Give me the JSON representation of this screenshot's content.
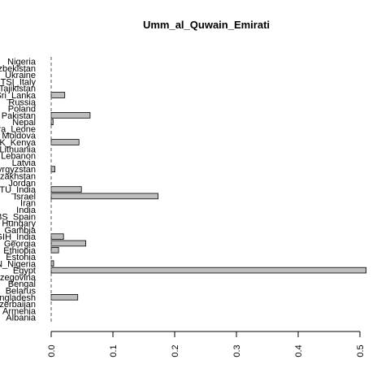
{
  "chart_data": {
    "type": "bar",
    "orientation": "horizontal",
    "title": "Umm_al_Quwain_Emirati",
    "xlabel": "",
    "ylabel": "",
    "xlim": [
      0,
      0.51
    ],
    "x_ticks": [
      "0.0",
      "0.1",
      "0.2",
      "0.3",
      "0.4",
      "0.5"
    ],
    "x_tick_values": [
      0,
      0.1,
      0.2,
      0.3,
      0.4,
      0.5
    ],
    "grid": false,
    "bar_color": "#bebebe",
    "categories": [
      "Albania",
      "Armenia",
      "Azerbaijan",
      "Bangladesh",
      "Belarus",
      "Bengal",
      "Bosnia_Herzegovina",
      "Egypt",
      "ESN_Nigeria",
      "Estonia",
      "Ethiopia",
      "Georgia",
      "GIH_India",
      "Gambia",
      "Hungary",
      "IBS_Spain",
      "India",
      "Iran",
      "Israel",
      "ITU_India",
      "Jordan",
      "Kazakhstan",
      "Kyrgyzstan",
      "Latvia",
      "Lebanon",
      "Lithuania",
      "LWK_Kenya",
      "Moldova",
      "MSL_Sierra_Leone",
      "Nepal",
      "Pakistan",
      "Poland",
      "Russia",
      "STU_Sri_Lanka",
      "Tajikistan",
      "TSI_Italy",
      "Ukraine",
      "Uzbekistan",
      "YRI_Nigeria"
    ],
    "values": [
      0,
      0,
      0,
      0.043,
      0,
      0,
      0,
      0.51,
      0.004,
      0,
      0.012,
      0.056,
      0.02,
      0,
      0,
      0,
      0,
      0,
      0.173,
      0.049,
      0,
      0,
      0.006,
      0,
      0,
      0,
      0.045,
      0,
      0,
      0.003,
      0.063,
      0,
      0,
      0.022,
      0,
      0,
      0,
      0,
      0
    ],
    "visible_labels": [
      "Albania",
      "Armenia",
      "Azerbaijan",
      "Bangladesh",
      "Belarus",
      "Bengal",
      "Herzegovina",
      "Egypt",
      "ESN_Nigeria",
      "Estonia",
      "Ethiopia",
      "Georgia",
      "GIH_India",
      "Gambia",
      "Hungary",
      "IBS_Spain",
      "India",
      "Iran",
      "Israel",
      "ITU_India",
      "Jordan",
      "Kazakhstan",
      "Kyrgyzstan",
      "Latvia",
      "Lebanon",
      "Lithuania",
      "LWK_Kenya",
      "Moldova",
      "MSL_Sierra_Leone",
      "Nepal",
      "Pakistan",
      "Poland",
      "Russia",
      "STU_Sri_Lanka",
      "Tajikistan",
      "TSI_Italy",
      "Ukraine",
      "Uzbekistan",
      "Nigeria"
    ]
  }
}
